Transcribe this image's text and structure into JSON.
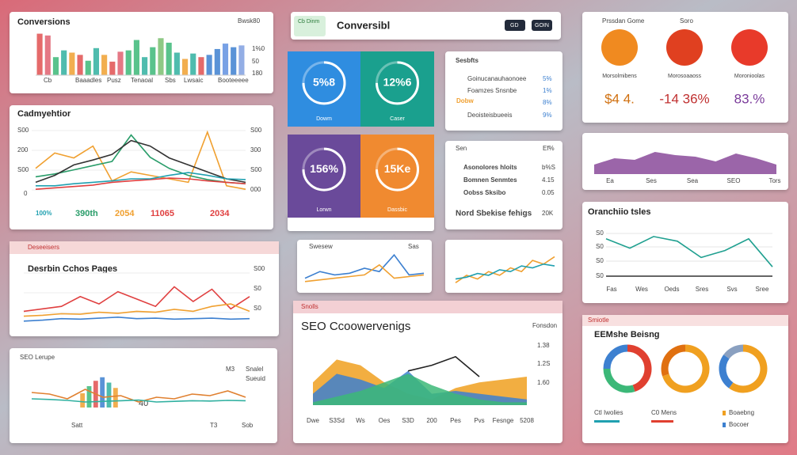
{
  "conversions": {
    "title": "Conversions",
    "badge": "Bwsk80",
    "side_labels": [
      "1%0",
      "50",
      "180"
    ],
    "labels": [
      "Cb",
      "Baaadles",
      "Pusz",
      "Tenaoal",
      "Sbs",
      "Lwsaic",
      "Booteeeee"
    ],
    "bar_chart": {
      "ylim": [
        0,
        100
      ],
      "values": [
        92,
        88,
        40,
        55,
        50,
        45,
        32,
        60,
        45,
        30,
        52,
        55,
        78,
        40,
        62,
        82,
        72,
        50,
        36,
        48,
        40,
        45,
        58,
        70,
        62,
        66
      ],
      "colors": [
        "#e05050",
        "#e06070",
        "#3cb878",
        "#30b0a0",
        "#f0a030",
        "#e05050",
        "#3cb878",
        "#30b0a0",
        "#f0a030",
        "#e05050",
        "#e06070",
        "#3cb878",
        "#3cb878",
        "#30b0a0",
        "#3cb878",
        "#7ac070",
        "#3cb878",
        "#30b0a0",
        "#f0a030",
        "#30b0a0",
        "#e05050",
        "#3d80d0",
        "#3d80d0",
        "#6090e0",
        "#3d80d0",
        "#80a0e0"
      ]
    }
  },
  "engagement": {
    "title": "Cadmyehtior",
    "left_ticks": [
      "S00",
      "200",
      "S00",
      "0"
    ],
    "right_ticks": [
      "S00",
      "300",
      "S00",
      "000"
    ],
    "stats": [
      "100%",
      "390th",
      "2054",
      "11065",
      "2034"
    ],
    "line_chart": {
      "ylim": [
        0,
        100
      ],
      "series": [
        {
          "color": "#f0a030",
          "values": [
            40,
            62,
            55,
            72,
            22,
            35,
            30,
            25,
            20,
            92,
            15,
            10
          ]
        },
        {
          "color": "#2a9d6a",
          "values": [
            28,
            32,
            38,
            44,
            50,
            88,
            56,
            40,
            30,
            24,
            20,
            18
          ]
        },
        {
          "color": "#333333",
          "values": [
            20,
            30,
            45,
            52,
            60,
            80,
            72,
            55,
            45,
            35,
            25,
            20
          ]
        },
        {
          "color": "#e04040",
          "values": [
            10,
            12,
            14,
            16,
            20,
            22,
            24,
            26,
            25,
            22,
            20,
            18
          ]
        },
        {
          "color": "#20a0b0",
          "values": [
            15,
            15,
            18,
            20,
            22,
            25,
            25,
            30,
            34,
            30,
            25,
            24
          ]
        }
      ]
    }
  },
  "pages": {
    "header": "Deseeisers",
    "title": "Desrbin Cchos Pages",
    "right_ticks": [
      "S00",
      "S0",
      "S0"
    ],
    "line_chart": {
      "ylim": [
        0,
        100
      ],
      "series": [
        {
          "color": "#e04040",
          "values": [
            30,
            35,
            40,
            60,
            45,
            70,
            55,
            40,
            80,
            50,
            75,
            35,
            60
          ]
        },
        {
          "color": "#3d80d0",
          "values": [
            10,
            12,
            15,
            14,
            16,
            18,
            15,
            16,
            14,
            15,
            16,
            14,
            15
          ]
        },
        {
          "color": "#f0a030",
          "values": [
            20,
            22,
            25,
            24,
            28,
            26,
            30,
            28,
            34,
            30,
            40,
            45,
            30
          ]
        }
      ]
    }
  },
  "seo_lerupe": {
    "title": "SEO Lerupe",
    "labels": [
      "M3",
      "Snalel",
      "Sueuid",
      "40",
      "Satt",
      "T3",
      "Sob"
    ],
    "bar_chart": {
      "ylim": [
        0,
        100
      ],
      "values": [
        40,
        60,
        75,
        85,
        70,
        55
      ],
      "colors": [
        "#f0a030",
        "#3cb878",
        "#e05050",
        "#3d80d0",
        "#30b0a0",
        "#f0a030"
      ]
    },
    "line_chart": {
      "ylim": [
        0,
        100
      ],
      "series": [
        {
          "color": "#e08030",
          "values": [
            60,
            55,
            40,
            70,
            45,
            50,
            30,
            45,
            40,
            55,
            50,
            65,
            45
          ]
        },
        {
          "color": "#30b0a0",
          "values": [
            40,
            38,
            35,
            30,
            32,
            34,
            36,
            30,
            32,
            34,
            33,
            35,
            34
          ]
        }
      ]
    }
  },
  "header_bar": {
    "badge": "Cb Dinm",
    "title": "Conversibl",
    "buttons": [
      "GD",
      "GOIN"
    ]
  },
  "tiles": [
    {
      "value": "5%8",
      "label": "Dowm",
      "color": "#2f8de0"
    },
    {
      "value": "12%6",
      "label": "Caser",
      "color": "#1aa08e"
    },
    {
      "value": "156%",
      "label": "Lorwn",
      "color": "#6a4a9a"
    },
    {
      "value": "15Ke",
      "label": "Dassbic",
      "color": "#f08a30"
    }
  ],
  "summary_list": {
    "title": "Sesbfts",
    "rows": [
      [
        "Goinucanauhaonoee",
        "5%"
      ],
      [
        "Foamzes Snsnbe",
        "1%"
      ],
      [
        "Dobw",
        "8%"
      ],
      [
        "Deoisteisbueeis",
        "9%"
      ]
    ]
  },
  "keyword_list": {
    "title": "Sen",
    "badge": "Ef%",
    "rows": [
      [
        "Asonolores hloits",
        "b%S"
      ],
      [
        "Bomnen Senmtes",
        "4.15"
      ],
      [
        "Oobss Sksibo",
        "0.05"
      ],
      [
        "Nord Sbekise fehigs",
        "20K"
      ]
    ]
  },
  "mini_chart_a": {
    "title": "Swesew",
    "badge": "Sas",
    "line_chart": {
      "ylim": [
        0,
        100
      ],
      "series": [
        {
          "color": "#3d80d0",
          "values": [
            20,
            40,
            30,
            35,
            50,
            40,
            90,
            30,
            35
          ]
        },
        {
          "color": "#f0a030",
          "values": [
            10,
            15,
            20,
            25,
            30,
            60,
            20,
            25,
            30
          ]
        }
      ]
    }
  },
  "mini_chart_b": {
    "line_chart": {
      "ylim": [
        0,
        100
      ],
      "series": [
        {
          "color": "#f0a030",
          "values": [
            10,
            30,
            20,
            40,
            30,
            50,
            40,
            70,
            60,
            80
          ]
        },
        {
          "color": "#20a0b0",
          "values": [
            20,
            25,
            35,
            30,
            45,
            40,
            55,
            50,
            60,
            55
          ]
        }
      ]
    }
  },
  "seo_overview": {
    "header": "Snolls",
    "title": "SEO Ccoowervenigs",
    "right_labels": [
      "Fonsdon",
      "1.38",
      "1.2S",
      "1.60"
    ],
    "x_labels": [
      "Dwe",
      "S3Sd",
      "Ws",
      "Oes",
      "S3D",
      "200",
      "Pes",
      "Pvs",
      "Fesnge",
      "5208"
    ],
    "area_chart": {
      "ylim": [
        0,
        100
      ],
      "series": [
        {
          "color": "#f0a020",
          "values": [
            40,
            80,
            70,
            40,
            20,
            10,
            30,
            40,
            45,
            50
          ]
        },
        {
          "color": "#3d80d0",
          "values": [
            20,
            55,
            45,
            30,
            60,
            20,
            25,
            20,
            15,
            10
          ]
        },
        {
          "color": "#3cb878",
          "values": [
            5,
            15,
            25,
            40,
            55,
            35,
            20,
            10,
            5,
            5
          ]
        }
      ]
    },
    "line_chart": {
      "ylim": [
        0,
        100
      ],
      "series": [
        {
          "color": "#222222",
          "values": [
            null,
            null,
            null,
            null,
            60,
            70,
            85,
            50,
            null,
            null
          ]
        }
      ]
    }
  },
  "gauges": {
    "title": "Prssdan Gome",
    "badge": "Soro",
    "items": [
      {
        "caption": "Morsolmibens",
        "value": "$4 4.",
        "color": "#f08a20",
        "text_color": "#d07010"
      },
      {
        "caption": "Morosoaaoss",
        "value": "-14 36%",
        "color": "#e04020",
        "text_color": "#c03030"
      },
      {
        "caption": "Moronioolas",
        "value": "83.%",
        "color": "#e83a2a",
        "text_color": "#7a3a9a"
      }
    ]
  },
  "trend_area": {
    "labels": [
      "Ea",
      "Ses",
      "Sea",
      "SEO",
      "Tors"
    ],
    "area_chart": {
      "ylim": [
        0,
        100
      ],
      "series": [
        {
          "color": "#8a4a9a",
          "values": [
            30,
            50,
            45,
            70,
            60,
            55,
            40,
            65,
            50,
            30
          ]
        }
      ]
    }
  },
  "traffic_lines": {
    "title": "Oranchiio tsles",
    "y_labels": [
      "S0",
      "S0",
      "S0",
      "S0"
    ],
    "x_labels": [
      "Fas",
      "Wes",
      "Oeds",
      "Sres",
      "Svs",
      "Sree"
    ],
    "line_chart": {
      "ylim": [
        0,
        100
      ],
      "series": [
        {
          "color": "#20a090",
          "values": [
            80,
            60,
            85,
            75,
            40,
            55,
            80,
            20
          ]
        }
      ]
    }
  },
  "ranking": {
    "header": "Smiotle",
    "title": "EEMshe Beisng",
    "legend": [
      "Ctl Iwolies",
      "C0 Mens",
      "Boaebng",
      "Bocoer"
    ],
    "donuts": [
      {
        "values": [
          45,
          30,
          25
        ],
        "colors": [
          "#e04030",
          "#3cb878",
          "#3d80d0"
        ]
      },
      {
        "values": [
          70,
          30
        ],
        "colors": [
          "#f0a020",
          "#e07010"
        ]
      },
      {
        "values": [
          60,
          25,
          15
        ],
        "colors": [
          "#f0a020",
          "#3d80d0",
          "#8aa0c0"
        ]
      }
    ]
  }
}
